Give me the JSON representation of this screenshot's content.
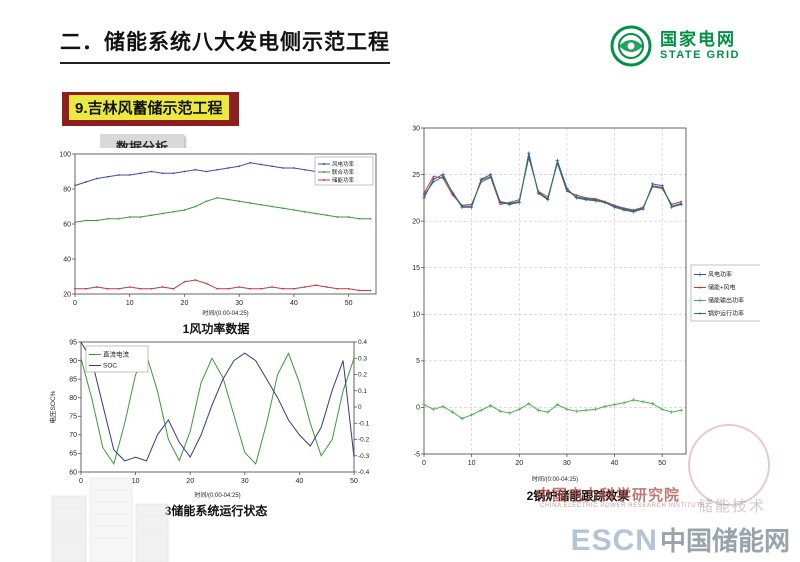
{
  "header": {
    "title": "二．储能系统八大发电侧示范工程"
  },
  "logo": {
    "cn": "国家电网",
    "en": "STATE GRID"
  },
  "section": {
    "label": "9.吉林风蓄储示范工程"
  },
  "badge": {
    "label": "数据分析"
  },
  "watermarks": {
    "institute": "中国电力科学研究院",
    "institute_en": "CHINA ELECTRIC POWER RESEARCH INSTITUTE",
    "tech": "储能技术",
    "escn": "ESCN",
    "escn_cn": "中国储能网"
  },
  "chart_data": [
    {
      "type": "line",
      "caption": "1风功率数据",
      "xlabel": "时间/(0:00-04:25)",
      "xlim": [
        0,
        55
      ],
      "xticks": [
        0,
        10,
        20,
        30,
        40,
        50
      ],
      "ylim": [
        20,
        100
      ],
      "yticks": [
        20,
        40,
        60,
        80,
        100
      ],
      "legend_position": "top-right",
      "grid": false,
      "x": [
        0,
        2,
        4,
        6,
        8,
        10,
        12,
        14,
        16,
        18,
        20,
        22,
        24,
        26,
        28,
        30,
        32,
        34,
        36,
        38,
        40,
        42,
        44,
        46,
        48,
        50,
        52,
        54
      ],
      "series": [
        {
          "name": "风电功率",
          "color": "#3b4fa8",
          "marker": "dot",
          "values": [
            82,
            84,
            86,
            87,
            88,
            88,
            89,
            90,
            89,
            89,
            90,
            91,
            90,
            91,
            92,
            93,
            95,
            94,
            93,
            92,
            92,
            91,
            90,
            90,
            89,
            88,
            87,
            86
          ]
        },
        {
          "name": "联合功率",
          "color": "#3a9a3a",
          "marker": "dot",
          "values": [
            61,
            62,
            62,
            63,
            63,
            64,
            64,
            65,
            66,
            67,
            68,
            70,
            73,
            75,
            74,
            73,
            72,
            71,
            70,
            69,
            68,
            67,
            66,
            65,
            64,
            64,
            63,
            63
          ]
        },
        {
          "name": "储能功率",
          "color": "#c43a3a",
          "marker": "dot",
          "values": [
            23,
            23,
            24,
            23,
            23,
            24,
            23,
            23,
            24,
            23,
            27,
            28,
            26,
            23,
            23,
            24,
            23,
            23,
            24,
            23,
            23,
            24,
            25,
            24,
            23,
            23,
            22,
            22
          ]
        }
      ]
    },
    {
      "type": "line",
      "caption": "2锅炉储能跟踪效果",
      "xlabel": "时间/(0:00-04:25)",
      "xlim": [
        0,
        55
      ],
      "xticks": [
        0,
        10,
        20,
        30,
        40,
        50
      ],
      "ylim": [
        -5,
        30
      ],
      "yticks": [
        -5,
        0,
        5,
        10,
        15,
        20,
        25,
        30
      ],
      "legend_position": "right",
      "grid": true,
      "x": [
        0,
        2,
        4,
        6,
        8,
        10,
        12,
        14,
        16,
        18,
        20,
        22,
        24,
        26,
        28,
        30,
        32,
        34,
        36,
        38,
        40,
        42,
        44,
        46,
        48,
        50,
        52,
        54
      ],
      "series": [
        {
          "name": "风电功率",
          "color": "#3b4fa8",
          "marker": "plus",
          "values": [
            22.5,
            24.5,
            25,
            23,
            21.5,
            21.5,
            24.5,
            25,
            22,
            21.8,
            22,
            27.3,
            23,
            22.3,
            26.5,
            23.5,
            22.5,
            22.3,
            22.2,
            22,
            21.5,
            21.2,
            21,
            21.3,
            24,
            23.8,
            21.5,
            21.8
          ]
        },
        {
          "name": "储能+风电",
          "color": "#c43a3a",
          "marker": "dot",
          "values": [
            23,
            24.8,
            24.6,
            22.8,
            21.7,
            21.8,
            24.2,
            24.7,
            21.8,
            22,
            22.3,
            26.8,
            23.2,
            22.6,
            26.2,
            23.2,
            22.8,
            22.5,
            22.4,
            22.1,
            21.7,
            21.4,
            21.2,
            21.5,
            23.7,
            23.5,
            21.8,
            22.1
          ]
        },
        {
          "name": "储能输出功率",
          "color": "#4cae4c",
          "marker": "plus",
          "values": [
            0.3,
            -0.2,
            0.1,
            -0.5,
            -1.2,
            -0.8,
            -0.3,
            0.2,
            -0.4,
            -0.6,
            -0.2,
            0.4,
            -0.3,
            -0.5,
            0.3,
            -0.2,
            -0.4,
            -0.3,
            -0.2,
            0.1,
            0.3,
            0.5,
            0.8,
            0.6,
            0.4,
            -0.2,
            -0.5,
            -0.3
          ]
        },
        {
          "name": "锅炉运行功率",
          "color": "#1c7a6e",
          "marker": "dot",
          "values": [
            22.8,
            24.2,
            24.8,
            23.1,
            21.6,
            21.6,
            24.4,
            24.8,
            22.1,
            21.9,
            22.1,
            27.0,
            23.1,
            22.4,
            26.3,
            23.3,
            22.6,
            22.4,
            22.3,
            22.0,
            21.6,
            21.3,
            21.1,
            21.4,
            23.8,
            23.6,
            21.6,
            21.9
          ]
        }
      ]
    },
    {
      "type": "line",
      "caption": "3储能系统运行状态",
      "xlabel": "时间/(0:00-04:25)",
      "ylabel": "电压SOC%",
      "xlim": [
        0,
        50
      ],
      "xticks": [
        0,
        10,
        20,
        30,
        40,
        50
      ],
      "ylim": [
        60,
        95
      ],
      "yticks": [
        60,
        65,
        70,
        75,
        80,
        85,
        90,
        95
      ],
      "y2lim": [
        -0.4,
        0.4
      ],
      "y2ticks": [
        -0.4,
        -0.3,
        -0.2,
        -0.1,
        0,
        0.1,
        0.2,
        0.3,
        0.4
      ],
      "legend_position": "top-left",
      "grid": false,
      "x": [
        0,
        2,
        4,
        6,
        8,
        10,
        12,
        14,
        16,
        18,
        20,
        22,
        24,
        26,
        28,
        30,
        32,
        34,
        36,
        38,
        40,
        42,
        44,
        46,
        48,
        50
      ],
      "series": [
        {
          "name": "直流电流",
          "color": "#3a9a3a",
          "marker": "none",
          "axis": "y2",
          "values": [
            0.3,
            0.05,
            -0.25,
            -0.35,
            -0.1,
            0.2,
            0.32,
            0.1,
            -0.2,
            -0.33,
            -0.15,
            0.15,
            0.3,
            0.18,
            -0.05,
            -0.28,
            -0.35,
            -0.1,
            0.2,
            0.33,
            0.15,
            -0.1,
            -0.3,
            -0.2,
            0.1,
            0.3
          ]
        },
        {
          "name": "SOC",
          "color": "#333a8c",
          "marker": "none",
          "axis": "y",
          "values": [
            95,
            90,
            78,
            66,
            63,
            64,
            63,
            70,
            74,
            68,
            64,
            70,
            78,
            85,
            90,
            92,
            90,
            85,
            80,
            74,
            70,
            67,
            72,
            82,
            90,
            64
          ]
        }
      ]
    }
  ]
}
